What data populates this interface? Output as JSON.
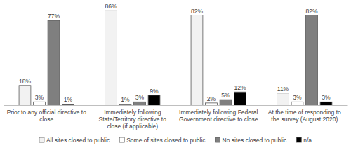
{
  "chart_data": {
    "type": "bar",
    "categories": [
      "Prior to any official directive to close",
      "Immediately following State/Territory directive to close (if applicable)",
      "Immediately following Federal Government directive to close",
      "At the time of responding to the survey (August 2020)"
    ],
    "series": [
      {
        "name": "All sites closed to public",
        "color": "#f2f2f2",
        "values": [
          18,
          86,
          82,
          11
        ],
        "value_labels": [
          "18%",
          "86%",
          "82%",
          "11%"
        ]
      },
      {
        "name": "Some of sites closed to public",
        "color": "#ffffff",
        "values": [
          3,
          1,
          2,
          3
        ],
        "value_labels": [
          "3%",
          "1%",
          "2%",
          "3%"
        ]
      },
      {
        "name": "No sites closed to public",
        "color": "#7f7f7f",
        "values": [
          77,
          3,
          5,
          82
        ],
        "value_labels": [
          "77%",
          "3%",
          "5%",
          "82%"
        ]
      },
      {
        "name": "n/a",
        "color": "#000000",
        "values": [
          1,
          9,
          12,
          3
        ],
        "value_labels": [
          "1%",
          "9%",
          "12%",
          "3%"
        ]
      }
    ],
    "ylim": [
      0,
      90
    ],
    "data_labels": true,
    "tick_labels": "x",
    "legend": "bottom"
  }
}
